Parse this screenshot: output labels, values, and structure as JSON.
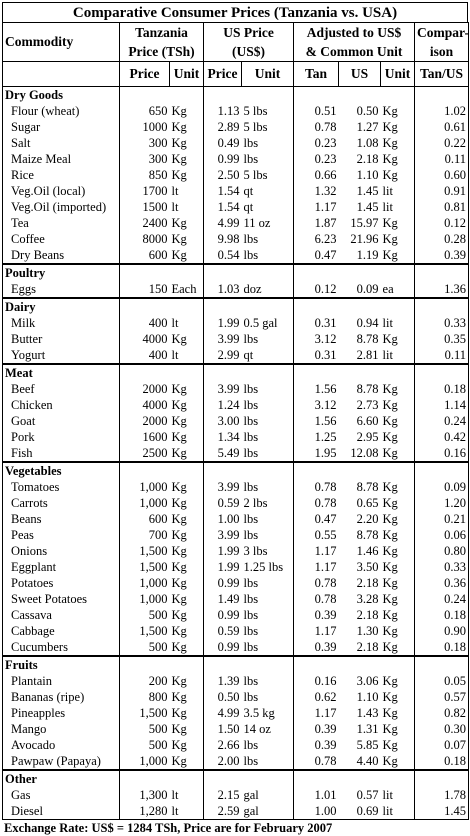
{
  "title": "Comparative Consumer Prices (Tanzania vs. USA)",
  "headers": {
    "commodity": "Commodity",
    "tanzania_l1": "Tanzania",
    "tanzania_l2": "Price (TSh)",
    "us_l1": "US Price",
    "us_l2": "(US$)",
    "adjusted_l1": "Adjusted to US$",
    "adjusted_l2": "& Common Unit",
    "comparison_l1": "Compar-",
    "comparison_l2": "ison",
    "sub": [
      "Price",
      "Unit",
      "Price",
      "Unit",
      "Tan",
      "US",
      "Unit",
      "Tan/US"
    ]
  },
  "sections": [
    {
      "name": "Dry Goods",
      "rows": [
        [
          "Flour (wheat)",
          "650",
          "Kg",
          "1.13",
          "5 lbs",
          "0.51",
          "0.50",
          "Kg",
          "1.02"
        ],
        [
          "Sugar",
          "1000",
          "Kg",
          "2.89",
          "5 lbs",
          "0.78",
          "1.27",
          "Kg",
          "0.61"
        ],
        [
          "Salt",
          "300",
          "Kg",
          "0.49",
          "lbs",
          "0.23",
          "1.08",
          "Kg",
          "0.22"
        ],
        [
          "Maize Meal",
          "300",
          "Kg",
          "0.99",
          "lbs",
          "0.23",
          "2.18",
          "Kg",
          "0.11"
        ],
        [
          "Rice",
          "850",
          "Kg",
          "2.50",
          "5 lbs",
          "0.66",
          "1.10",
          "Kg",
          "0.60"
        ],
        [
          "Veg.Oil (local)",
          "1700",
          "lt",
          "1.54",
          "qt",
          "1.32",
          "1.45",
          "lit",
          "0.91"
        ],
        [
          "Veg.Oil (imported)",
          "1500",
          "lt",
          "1.54",
          "qt",
          "1.17",
          "1.45",
          "lit",
          "0.81"
        ],
        [
          "Tea",
          "2400",
          "Kg",
          "4.99",
          "11 oz",
          "1.87",
          "15.97",
          "Kg",
          "0.12"
        ],
        [
          "Coffee",
          "8000",
          "Kg",
          "9.98",
          "lbs",
          "6.23",
          "21.96",
          "Kg",
          "0.28"
        ],
        [
          "Dry Beans",
          "600",
          "Kg",
          "0.54",
          "lbs",
          "0.47",
          "1.19",
          "Kg",
          "0.39"
        ]
      ]
    },
    {
      "name": "Poultry",
      "rows": [
        [
          "Eggs",
          "150",
          "Each",
          "1.03",
          "doz",
          "0.12",
          "0.09",
          "ea",
          "1.36"
        ]
      ]
    },
    {
      "name": "Dairy",
      "rows": [
        [
          "Milk",
          "400",
          "lt",
          "1.99",
          "0.5 gal",
          "0.31",
          "0.94",
          "lit",
          "0.33"
        ],
        [
          "Butter",
          "4000",
          "Kg",
          "3.99",
          "lbs",
          "3.12",
          "8.78",
          "Kg",
          "0.35"
        ],
        [
          "Yogurt",
          "400",
          "lt",
          "2.99",
          "qt",
          "0.31",
          "2.81",
          "lit",
          "0.11"
        ]
      ]
    },
    {
      "name": "Meat",
      "rows": [
        [
          "Beef",
          "2000",
          "Kg",
          "3.99",
          "lbs",
          "1.56",
          "8.78",
          "Kg",
          "0.18"
        ],
        [
          "Chicken",
          "4000",
          "Kg",
          "1.24",
          "lbs",
          "3.12",
          "2.73",
          "Kg",
          "1.14"
        ],
        [
          "Goat",
          "2000",
          "Kg",
          "3.00",
          "lbs",
          "1.56",
          "6.60",
          "Kg",
          "0.24"
        ],
        [
          "Pork",
          "1600",
          "Kg",
          "1.34",
          "lbs",
          "1.25",
          "2.95",
          "Kg",
          "0.42"
        ],
        [
          "Fish",
          "2500",
          "Kg",
          "5.49",
          "lbs",
          "1.95",
          "12.08",
          "Kg",
          "0.16"
        ]
      ]
    },
    {
      "name": "Vegetables",
      "rows": [
        [
          "Tomatoes",
          "1,000",
          "Kg",
          "3.99",
          "lbs",
          "0.78",
          "8.78",
          "Kg",
          "0.09"
        ],
        [
          "Carrots",
          "1,000",
          "Kg",
          "0.59",
          "2 lbs",
          "0.78",
          "0.65",
          "Kg",
          "1.20"
        ],
        [
          "Beans",
          "600",
          "Kg",
          "1.00",
          "lbs",
          "0.47",
          "2.20",
          "Kg",
          "0.21"
        ],
        [
          "Peas",
          "700",
          "Kg",
          "3.99",
          "lbs",
          "0.55",
          "8.78",
          "Kg",
          "0.06"
        ],
        [
          "Onions",
          "1,500",
          "Kg",
          "1.99",
          "3 lbs",
          "1.17",
          "1.46",
          "Kg",
          "0.80"
        ],
        [
          "Eggplant",
          "1,500",
          "Kg",
          "1.99",
          "1.25 lbs",
          "1.17",
          "3.50",
          "Kg",
          "0.33"
        ],
        [
          "Potatoes",
          "1,000",
          "Kg",
          "0.99",
          "lbs",
          "0.78",
          "2.18",
          "Kg",
          "0.36"
        ],
        [
          "Sweet Potatoes",
          "1,000",
          "Kg",
          "1.49",
          "lbs",
          "0.78",
          "3.28",
          "Kg",
          "0.24"
        ],
        [
          "Cassava",
          "500",
          "Kg",
          "0.99",
          "lbs",
          "0.39",
          "2.18",
          "Kg",
          "0.18"
        ],
        [
          "Cabbage",
          "1,500",
          "Kg",
          "0.59",
          "lbs",
          "1.17",
          "1.30",
          "Kg",
          "0.90"
        ],
        [
          "Cucumbers",
          "500",
          "Kg",
          "0.99",
          "lbs",
          "0.39",
          "2.18",
          "Kg",
          "0.18"
        ]
      ]
    },
    {
      "name": "Fruits",
      "rows": [
        [
          "Plantain",
          "200",
          "Kg",
          "1.39",
          "lbs",
          "0.16",
          "3.06",
          "Kg",
          "0.05"
        ],
        [
          "Bananas (ripe)",
          "800",
          "Kg",
          "0.50",
          "lbs",
          "0.62",
          "1.10",
          "Kg",
          "0.57"
        ],
        [
          "Pineapples",
          "1,500",
          "Kg",
          "4.99",
          "3.5 kg",
          "1.17",
          "1.43",
          "Kg",
          "0.82"
        ],
        [
          "Mango",
          "500",
          "Kg",
          "1.50",
          "14 oz",
          "0.39",
          "1.31",
          "Kg",
          "0.30"
        ],
        [
          "Avocado",
          "500",
          "Kg",
          "2.66",
          "lbs",
          "0.39",
          "5.85",
          "Kg",
          "0.07"
        ],
        [
          "Pawpaw (Papaya)",
          "1,000",
          "Kg",
          "2.00",
          "lbs",
          "0.78",
          "4.40",
          "Kg",
          "0.18"
        ]
      ]
    },
    {
      "name": "Other",
      "rows": [
        [
          "Gas",
          "1,300",
          "lt",
          "2.15",
          "gal",
          "1.01",
          "0.57",
          "lit",
          "1.78"
        ],
        [
          "Diesel",
          "1,280",
          "lt",
          "2.59",
          "gal",
          "1.00",
          "0.69",
          "lit",
          "1.45"
        ]
      ]
    }
  ],
  "footer": "Exchange Rate:  US$ = 1284 TSh, Price are for February 2007"
}
